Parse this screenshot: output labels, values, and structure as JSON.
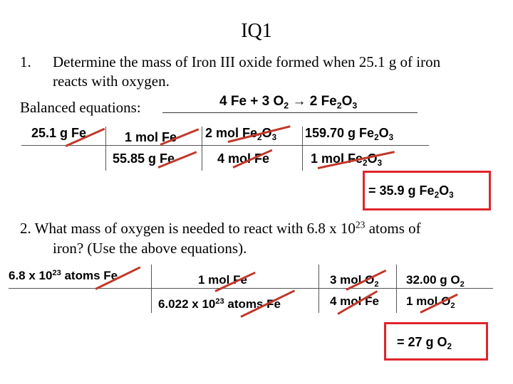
{
  "title": "IQ1",
  "q1": {
    "number": "1.",
    "line1": "Determine the mass of Iron III oxide formed when 25.1 g of iron",
    "line2": "reacts with oxygen.",
    "balanced_label": "Balanced equations:",
    "equation": {
      "a": "4 Fe + 3 O",
      "a_sub": "2",
      "b": " → 2 Fe",
      "b_sub1": "2",
      "b_o": "O",
      "b_sub2": "3"
    },
    "work": {
      "given": "25.1 g Fe",
      "num1": "1 mol Fe",
      "den1": "55.85 g Fe",
      "num2": {
        "t1": "2 mol Fe",
        "s1": "2",
        "t2": "O",
        "s2": "3"
      },
      "den2": "4 mol Fe",
      "num3": {
        "t1": "159.70 g Fe",
        "s1": "2",
        "t2": "O",
        "s2": "3"
      },
      "den3": {
        "t1": "1 mol Fe",
        "s1": "2",
        "t2": "O",
        "s2": "3"
      }
    },
    "answer": {
      "t1": "= 35.9 g Fe",
      "s1": "2",
      "t2": "O",
      "s2": "3"
    }
  },
  "q2": {
    "line1_a": "2.  What mass of oxygen is needed to react with 6.8 x 10",
    "line1_sup": "23",
    "line1_b": " atoms of",
    "line2": "iron? (Use the above equations).",
    "work": {
      "given": {
        "t1": "6.8 x 10",
        "sup": "23",
        "t2": " atoms Fe"
      },
      "num1": "1 mol Fe",
      "den1": {
        "t1": "6.022 x 10",
        "sup": "23",
        "t2": " atoms Fe"
      },
      "num2": {
        "t1": "3 mol O",
        "s1": "2"
      },
      "den2": "4 mol Fe",
      "num3": {
        "t1": "32.00 g O",
        "s1": "2"
      },
      "den3": {
        "t1": "1 mol O",
        "s1": "2"
      }
    },
    "answer": {
      "t1": "= 27 g O",
      "s1": "2"
    }
  },
  "colors": {
    "box": "#e0242b",
    "strike": "#c0392b"
  }
}
